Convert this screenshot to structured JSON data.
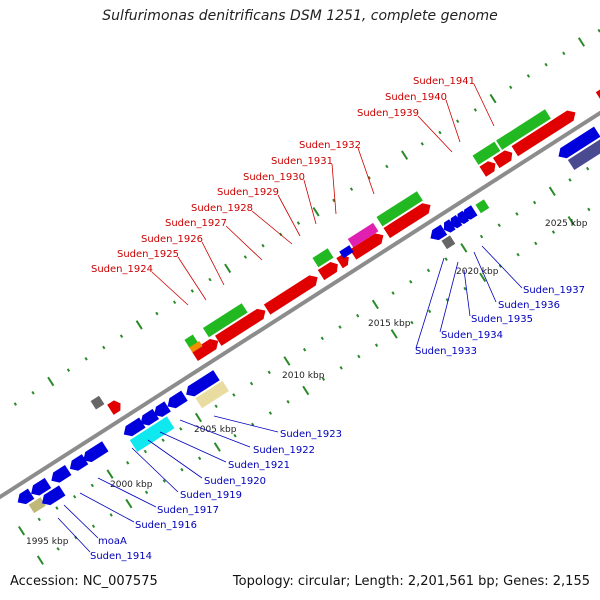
{
  "title": "Sulfurimonas denitrificans DSM 1251, complete genome",
  "accession": "Accession: NC_007575",
  "stats": "Topology: circular; Length: 2,201,561 bp; Genes: 2,155",
  "colors": {
    "backbone": "#888888",
    "forward_gene": "#e00000",
    "reverse_gene": "#0000dd",
    "label_forward": "#cc0000",
    "label_reverse": "#0000bb",
    "tick": "#2a8a2a",
    "cds_green": "#22b822",
    "cds_magenta": "#e020b0",
    "cds_cyan": "#10e8f0",
    "cds_khaki": "#e8dca0",
    "cds_olive": "#c0b878",
    "cds_orange": "#f09000",
    "cds_gray": "#666666",
    "cds_slate": "#4a4a90"
  },
  "kbp_marks": [
    "1995 kbp",
    "2000 kbp",
    "2005 kbp",
    "2010 kbp",
    "2015 kbp",
    "2020 kbp",
    "2025 kbp"
  ],
  "forward_labels": [
    "Suden_1924",
    "Suden_1925",
    "Suden_1926",
    "Suden_1927",
    "Suden_1928",
    "Suden_1929",
    "Suden_1930",
    "Suden_1931",
    "Suden_1932",
    "Suden_1939",
    "Suden_1940",
    "Suden_1941"
  ],
  "reverse_labels": [
    "Suden_1914",
    "moaA",
    "Suden_1916",
    "Suden_1917",
    "Suden_1919",
    "Suden_1920",
    "Suden_1921",
    "Suden_1922",
    "Suden_1923",
    "Suden_1933",
    "Suden_1934",
    "Suden_1935",
    "Suden_1936",
    "Suden_1937"
  ]
}
